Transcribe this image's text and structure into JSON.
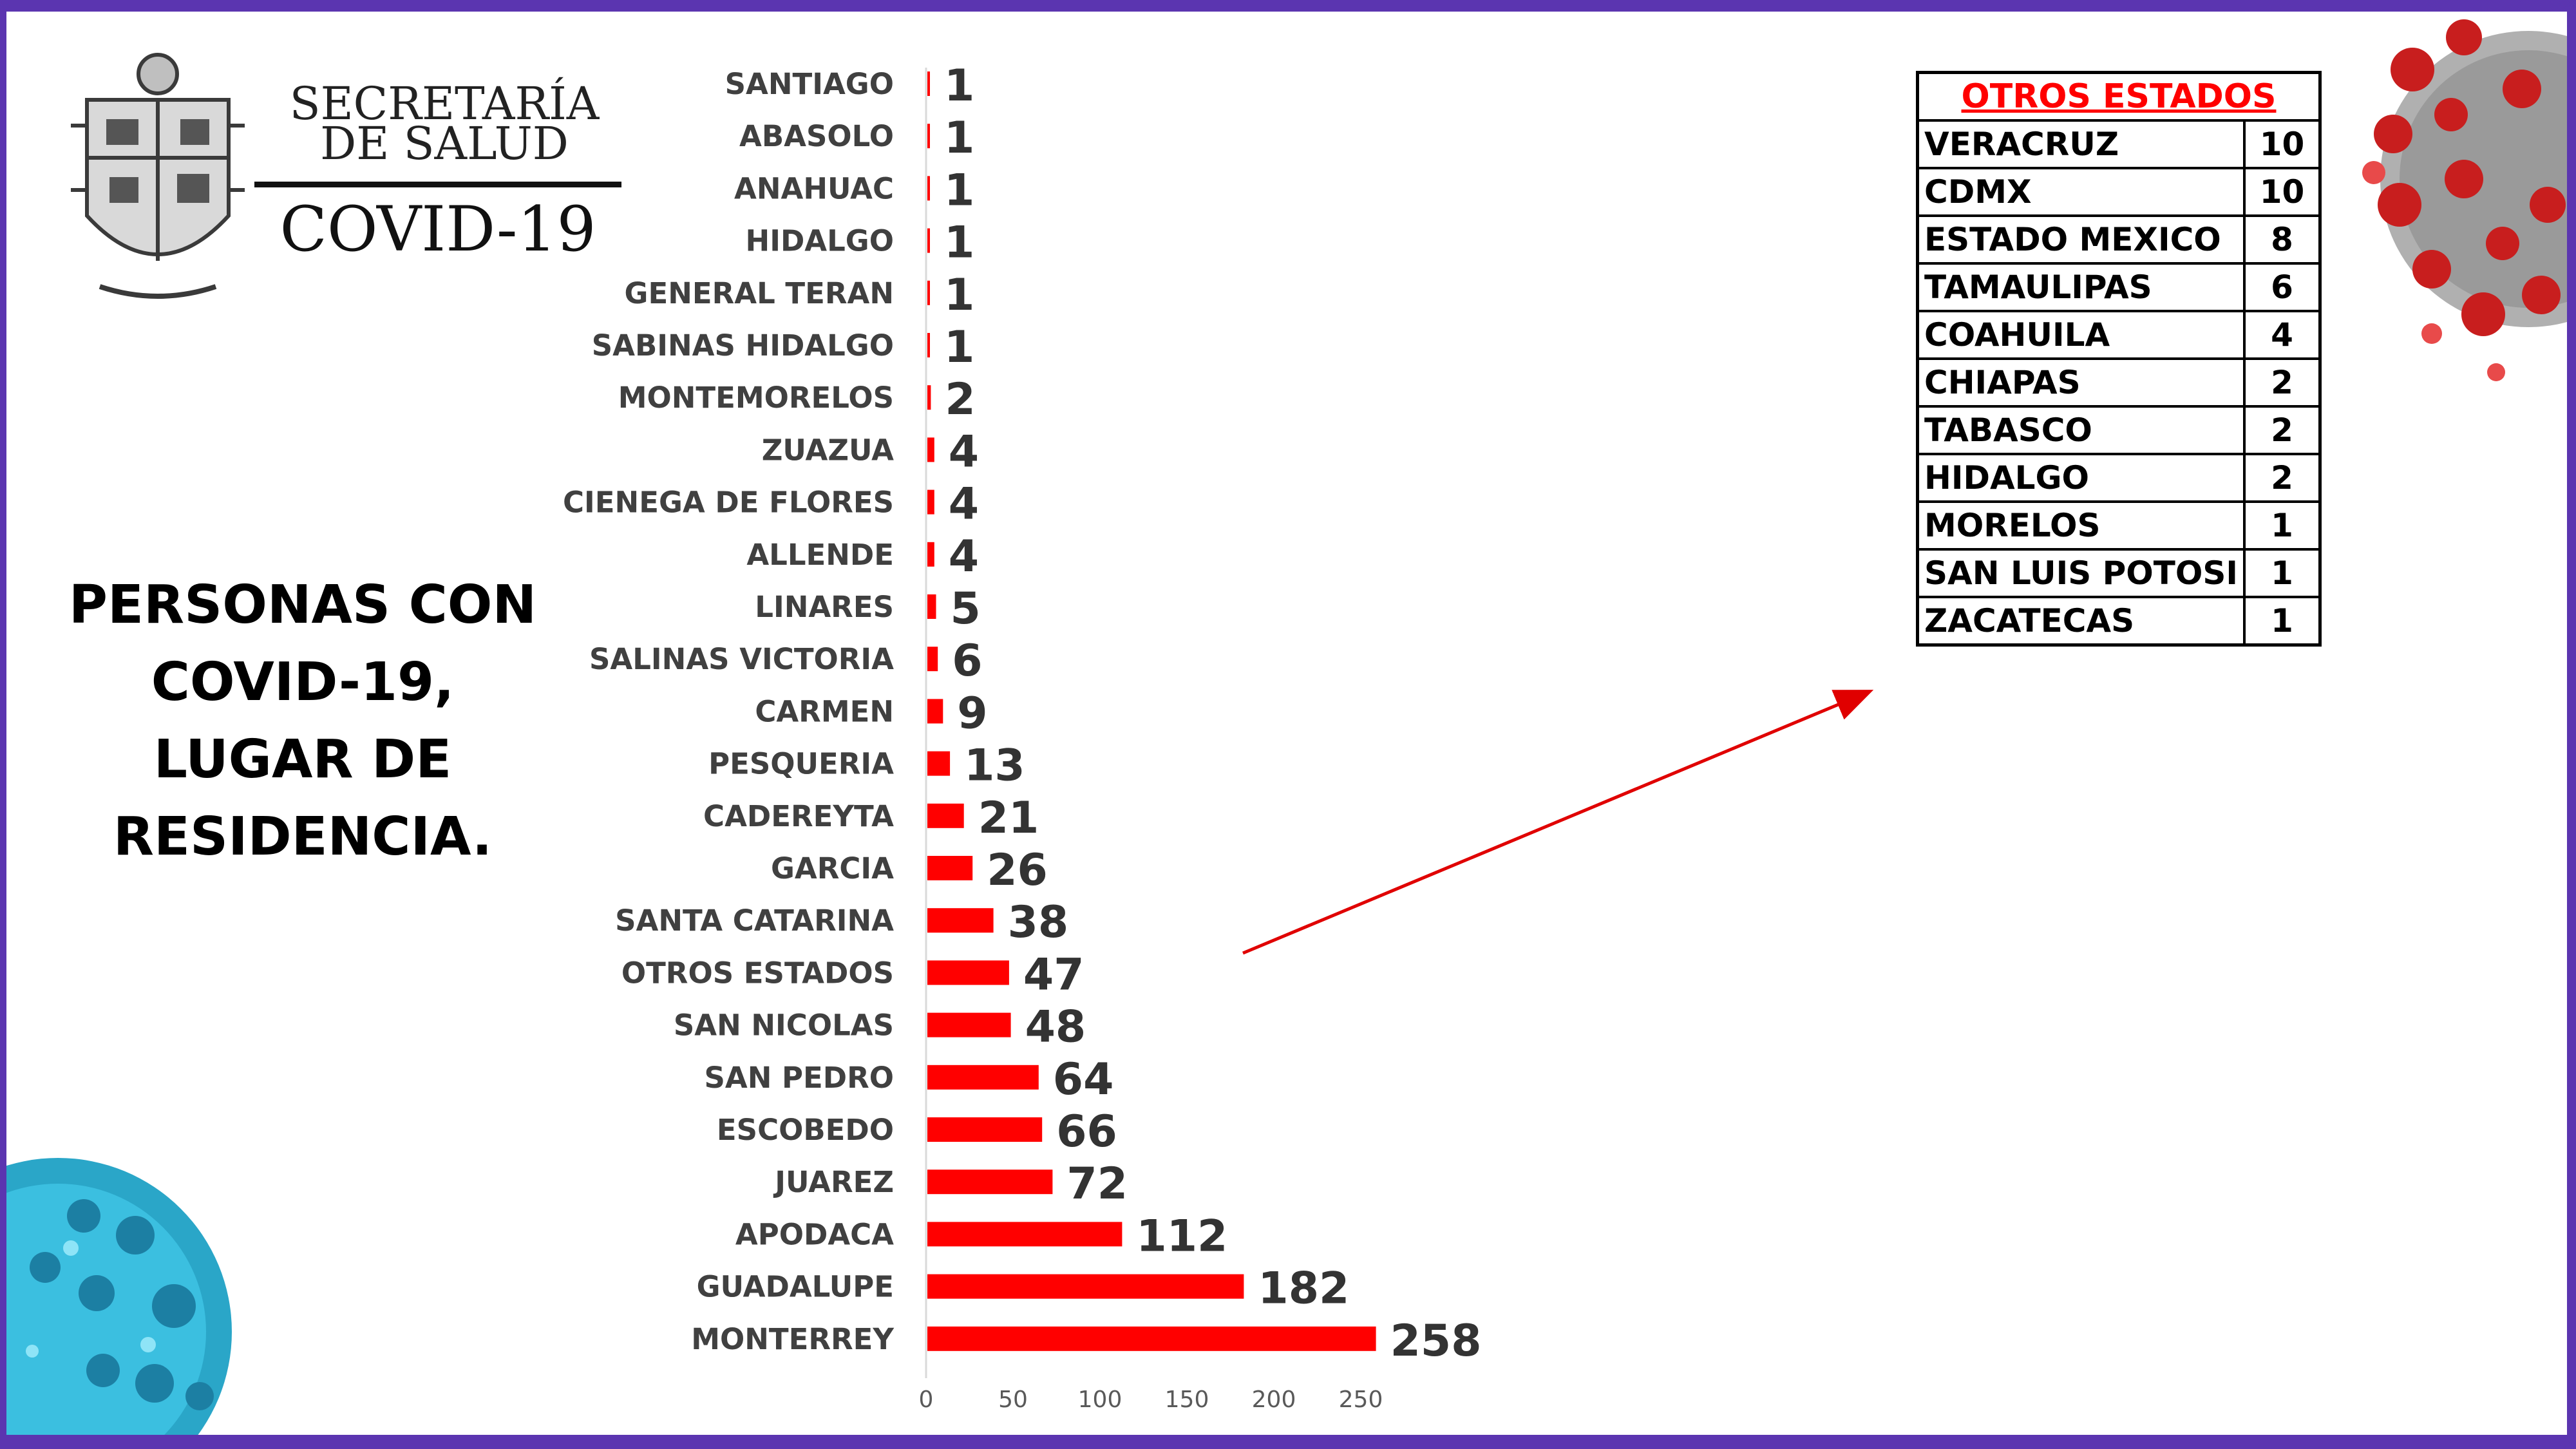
{
  "header": {
    "org_line1": "SECRETARÍA",
    "org_line2": "DE SALUD",
    "program": "COVID-19"
  },
  "headline": [
    "PERSONAS CON",
    "COVID-19,",
    "LUGAR DE",
    "RESIDENCIA."
  ],
  "colors": {
    "bar": "#ff0000",
    "frame": "#5b35b0",
    "arrow": "#e00000",
    "table_title": "#ff0000"
  },
  "icons": {
    "logo": "nuevo-leon-coat-of-arms",
    "virus_top_right": "red-coronavirus-illustration",
    "virus_bottom_left": "blue-coronavirus-illustration"
  },
  "chart_data": {
    "type": "bar",
    "orientation": "horizontal",
    "categories": [
      "SANTIAGO",
      "ABASOLO",
      "ANAHUAC",
      "HIDALGO",
      "GENERAL TERAN",
      "SABINAS HIDALGO",
      "MONTEMORELOS",
      "ZUAZUA",
      "CIENEGA DE FLORES",
      "ALLENDE",
      "LINARES",
      "SALINAS VICTORIA",
      "CARMEN",
      "PESQUERIA",
      "CADEREYTA",
      "GARCIA",
      "SANTA CATARINA",
      "OTROS ESTADOS",
      "SAN NICOLAS",
      "SAN PEDRO",
      "ESCOBEDO",
      "JUAREZ",
      "APODACA",
      "GUADALUPE",
      "MONTERREY"
    ],
    "values": [
      1,
      1,
      1,
      1,
      1,
      1,
      2,
      4,
      4,
      4,
      5,
      6,
      9,
      13,
      21,
      26,
      38,
      47,
      48,
      64,
      66,
      72,
      112,
      182,
      258
    ],
    "xlim": [
      0,
      250
    ],
    "xticks": [
      0,
      50,
      100,
      150,
      200,
      250
    ],
    "grid": false,
    "data_labels": true
  },
  "otros_estados_table": {
    "title": "OTROS ESTADOS",
    "rows": [
      {
        "state": "VERACRUZ",
        "count": "10"
      },
      {
        "state": "CDMX",
        "count": "10"
      },
      {
        "state": "ESTADO MEXICO",
        "count": "8"
      },
      {
        "state": "TAMAULIPAS",
        "count": "6"
      },
      {
        "state": "COAHUILA",
        "count": "4"
      },
      {
        "state": "CHIAPAS",
        "count": "2"
      },
      {
        "state": "TABASCO",
        "count": "2"
      },
      {
        "state": "HIDALGO",
        "count": "2"
      },
      {
        "state": "MORELOS",
        "count": "1"
      },
      {
        "state": "SAN LUIS POTOSI",
        "count": "1"
      },
      {
        "state": "ZACATECAS",
        "count": "1"
      }
    ]
  }
}
